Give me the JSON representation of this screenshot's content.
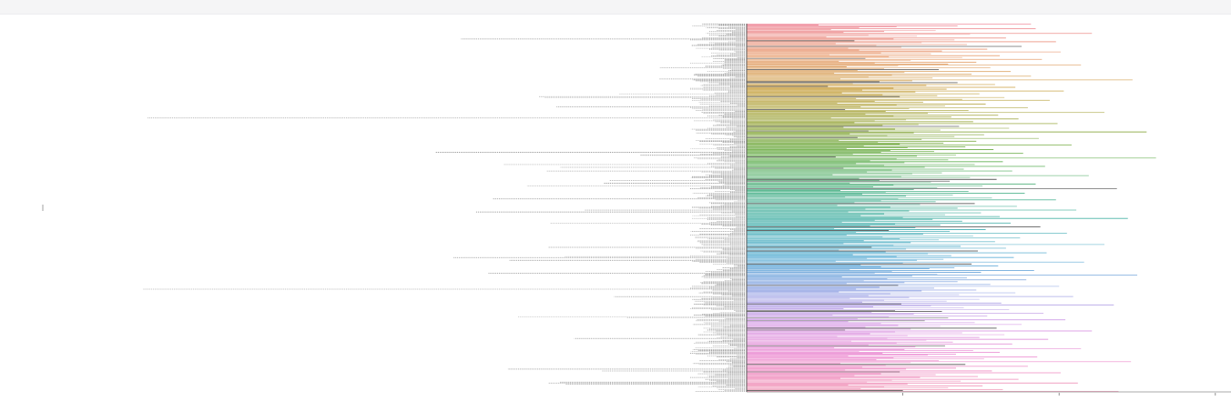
{
  "chart_data": {
    "type": "bar",
    "orientation": "horizontal",
    "title": "",
    "xlabel": "",
    "ylabel": "",
    "grid": false,
    "legend": "none",
    "xlim": [
      0,
      3100000
    ],
    "x_ticks": [
      1000000,
      2000000,
      3000000
    ],
    "y_ticks": [],
    "colors": {
      "palette": [
        "#f08f9f",
        "#e8a070",
        "#c9a548",
        "#9aaa45",
        "#66b04e",
        "#4eb38a",
        "#4db3b0",
        "#56abd4",
        "#9aa9e6",
        "#d79ae6",
        "#ee8fd0",
        "#f08fb0"
      ],
      "axis": "#555555",
      "tick_label": "#777777",
      "top_bar": "#f5f5f6"
    },
    "series": [
      {
        "name": "",
        "values": [
          1820000,
          460000,
          1350000,
          960000,
          720000,
          1850000,
          540000,
          1210000,
          880000,
          620000,
          2210000,
          1430000,
          780000,
          1090000,
          510000,
          1660000,
          940000,
          1330000,
          690000,
          1980000,
          1120000,
          570000,
          1410000,
          830000,
          1760000,
          990000,
          650000,
          1540000,
          720000,
          1250000,
          2010000,
          860000,
          1180000,
          530000,
          1620000,
          910000,
          1380000,
          760000,
          1890000,
          1050000,
          590000,
          1470000,
          820000,
          1290000,
          2140000,
          970000,
          640000,
          1560000,
          880000,
          1230000,
          710000,
          1690000,
          1010000,
          560000,
          1440000,
          930000,
          1820000,
          780000,
          1190000,
          600000,
          2470000,
          1060000,
          850000,
          1350000,
          680000,
          1590000,
          1150000,
          520000,
          1720000,
          940000,
          1280000,
          740000,
          2030000,
          1080000,
          610000,
          1490000,
          870000,
          1220000,
          980000,
          1650000,
          700000,
          1380000,
          1940000,
          820000,
          1130000,
          580000,
          1530000,
          960000,
          1270000,
          730000,
          1800000,
          1040000,
          630000,
          1420000,
          890000,
          2290000,
          1160000,
          760000,
          1610000,
          940000,
          1310000,
          540000,
          1740000,
          1020000,
          820000,
          1450000,
          690000,
          1990000,
          1100000,
          870000,
          1360000,
          620000,
          1680000,
          950000,
          1240000,
          780000,
          2560000,
          1070000,
          660000,
          1520000,
          900000,
          1330000,
          710000,
          1870000,
          1120000,
          590000,
          1470000,
          840000,
          1260000,
          980000,
          2080000,
          750000,
          1400000,
          1030000,
          640000,
          1580000,
          920000,
          1200000,
          860000,
          1770000,
          680000,
          1340000,
          1090000,
          570000,
          2620000,
          960000,
          1290000,
          790000,
          1640000,
          1010000,
          700000,
          1460000,
          880000,
          1910000,
          1140000,
          620000,
          1390000,
          930000,
          1700000,
          770000,
          1250000,
          1060000,
          550000,
          2190000,
          990000,
          1430000,
          720000,
          1600000,
          850000,
          1300000,
          1180000,
          660000,
          1850000,
          940000,
          1510000,
          810000,
          1220000,
          2370000,
          1070000,
          600000,
          1420000,
          890000,
          1780000,
          740000,
          1320000,
          1020000,
          630000,
          1570000,
          970000,
          1980000,
          860000,
          1210000,
          690000,
          1460000,
          1110000,
          580000,
          1730000,
          920000,
          1350000,
          760000,
          2110000,
          1040000,
          650000,
          1500000,
          880000,
          1270000,
          730000,
          1620000,
          1000000,
          2440000,
          1190000,
          820000,
          1380000,
          610000,
          1690000,
          950000,
          1240000,
          790000,
          1880000,
          1080000,
          560000,
          1530000,
          910000,
          1300000,
          700000,
          2050000,
          1130000,
          640000,
          1450000,
          870000,
          1750000,
          980000,
          1230000,
          750000,
          1590000,
          1050000,
          620000,
          2290000,
          940000,
          1370000,
          800000,
          1660000,
          1020000,
          590000,
          1480000,
          890000,
          1920000,
          1160000,
          680000,
          1310000,
          960000,
          1710000,
          770000,
          1260000,
          1090000,
          570000,
          2160000,
          1000000,
          1440000,
          730000,
          1610000,
          860000,
          1330000,
          1170000,
          660000,
          1840000,
          930000,
          1500000,
          820000,
          1220000,
          2500000,
          1060000,
          610000,
          1410000,
          900000,
          1790000,
          750000,
          1350000,
          1010000,
          640000,
          1560000,
          970000,
          2000000,
          850000,
          1200000,
          700000,
          1470000,
          1120000,
          590000,
          1720000,
          920000,
          1360000,
          780000,
          2090000,
          1040000,
          660000,
          1490000,
          880000,
          1280000,
          740000,
          1630000,
          990000,
          2350000,
          1180000,
          810000,
          1390000,
          620000,
          1680000,
          950000,
          1250000,
          800000,
          1900000,
          1070000,
          550000,
          1540000,
          910000,
          1290000,
          710000,
          2040000,
          1140000,
          650000,
          1460000,
          860000,
          1760000,
          970000,
          1240000,
          760000,
          1600000,
          1050000,
          630000,
          2210000,
          950000,
          1380000,
          790000,
          1650000,
          1030000,
          580000,
          1490000,
          900000,
          1930000,
          1150000,
          670000,
          1320000,
          960000,
          1700000,
          780000,
          1270000,
          1080000,
          560000,
          2140000,
          1010000,
          1450000,
          720000,
          1620000,
          870000,
          1340000,
          1160000,
          650000,
          1860000,
          940000,
          1520000,
          830000,
          1230000,
          2460000,
          1050000,
          600000,
          1400000,
          890000,
          1800000,
          740000,
          1340000,
          1020000,
          630000,
          1570000,
          980000,
          2010000,
          860000,
          1210000,
          690000,
          1480000,
          1110000,
          600000,
          1740000,
          930000,
          1370000,
          770000,
          2120000,
          1030000,
          650000,
          1510000,
          880000,
          1290000,
          730000,
          1640000,
          1000000,
          2380000
        ]
      }
    ]
  }
}
